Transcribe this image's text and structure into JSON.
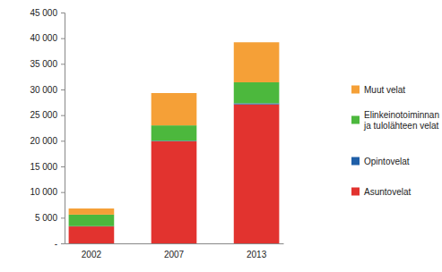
{
  "chart_data": {
    "type": "bar",
    "stacked": true,
    "grid": false,
    "legend": "right",
    "categories": [
      "2002",
      "2007",
      "2013"
    ],
    "series": [
      {
        "name": "Asuntovelat",
        "color": "#e2332f",
        "values": [
          3300,
          19900,
          27100
        ]
      },
      {
        "name": "Opintovelat",
        "color": "#1f5fa8",
        "values": [
          50,
          100,
          200
        ]
      },
      {
        "name": "Elinkeinotoiminnan ja tulolähteen velat",
        "color": "#4cb83d",
        "values": [
          2250,
          3000,
          4100
        ]
      },
      {
        "name": "Muut velat",
        "color": "#f5a037",
        "values": [
          1200,
          6300,
          7800
        ]
      }
    ],
    "ylim": [
      0,
      45000
    ],
    "yticks": [
      {
        "value": 0,
        "label": "-"
      },
      {
        "value": 5000,
        "label": "5 000"
      },
      {
        "value": 10000,
        "label": "10 000"
      },
      {
        "value": 15000,
        "label": "15 000"
      },
      {
        "value": 20000,
        "label": "20 000"
      },
      {
        "value": 25000,
        "label": "25 000"
      },
      {
        "value": 30000,
        "label": "30 000"
      },
      {
        "value": 35000,
        "label": "35 000"
      },
      {
        "value": 40000,
        "label": "40 000"
      },
      {
        "value": 45000,
        "label": "45 000"
      }
    ]
  }
}
